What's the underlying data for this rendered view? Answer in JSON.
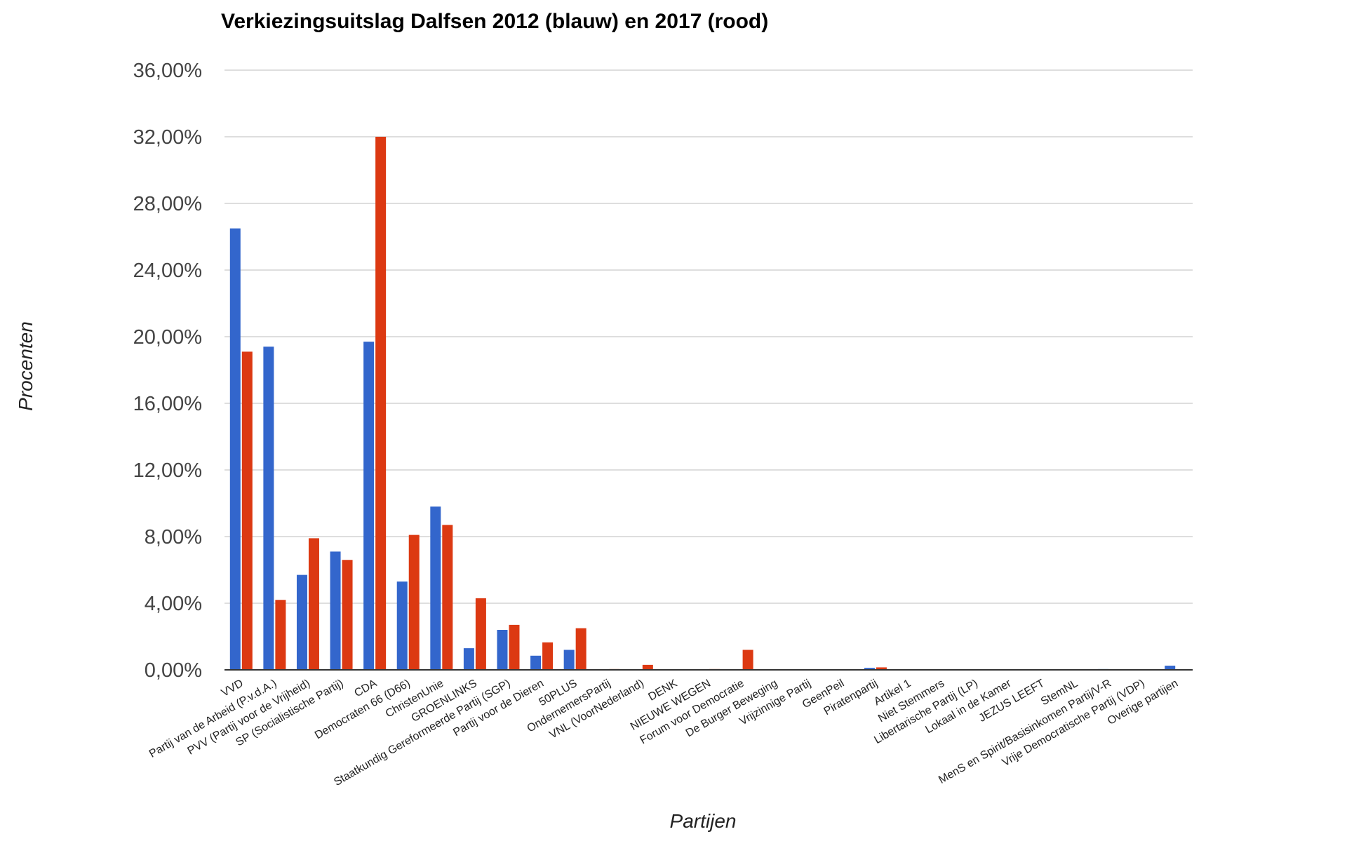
{
  "chart_data": {
    "type": "bar",
    "title": "Verkiezingsuitslag Dalfsen 2012 (blauw) en 2017 (rood)",
    "xlabel": "Partijen",
    "ylabel": "Procenten",
    "ylim": [
      0,
      36
    ],
    "yticks": [
      "0,00%",
      "4,00%",
      "8,00%",
      "12,00%",
      "16,00%",
      "20,00%",
      "24,00%",
      "28,00%",
      "32,00%",
      "36,00%"
    ],
    "grid": true,
    "legend": "none",
    "categories": [
      "VVD",
      "Partij van de Arbeid (P.v.d.A.)",
      "PVV (Partij voor de Vrijheid)",
      "SP (Socialistische Partij)",
      "CDA",
      "Democraten 66 (D66)",
      "ChristenUnie",
      "GROENLINKS",
      "Staatkundig Gereformeerde Partij (SGP)",
      "Partij voor de Dieren",
      "50PLUS",
      "OndernemersPartij",
      "VNL (VoorNederland)",
      "DENK",
      "NIEUWE WEGEN",
      "Forum voor Democratie",
      "De Burger Beweging",
      "Vrijzinnige Partij",
      "GeenPeil",
      "Piratenpartij",
      "Artikel 1",
      "Niet Stemmers",
      "Libertarische Partij (LP)",
      "Lokaal in de Kamer",
      "JEZUS LEEFT",
      "StemNL",
      "MenS en Spirit/Basisinkomen Partij/V-R",
      "Vrije Democratische Partij (VDP)",
      "Overige partijen"
    ],
    "series": [
      {
        "color": "#3366cc",
        "values": [
          26.5,
          19.4,
          5.7,
          7.1,
          19.7,
          5.3,
          9.8,
          1.3,
          2.4,
          0.85,
          1.2,
          0,
          0,
          0,
          0,
          0,
          0,
          0,
          0,
          0.12,
          0,
          0,
          0,
          0,
          0,
          0,
          0.05,
          0,
          0.25
        ]
      },
      {
        "color": "#dc3912",
        "values": [
          19.1,
          4.2,
          7.9,
          6.6,
          32.0,
          8.1,
          8.7,
          4.3,
          2.7,
          1.65,
          2.5,
          0.05,
          0.3,
          0,
          0.05,
          1.2,
          0,
          0,
          0,
          0.15,
          0,
          0,
          0,
          0,
          0,
          0,
          0,
          0,
          0
        ]
      }
    ]
  }
}
